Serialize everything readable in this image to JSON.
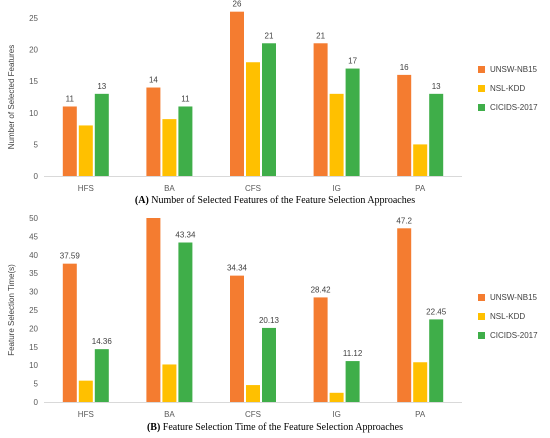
{
  "chart_data": [
    {
      "type": "bar",
      "caption_tag": "(A)",
      "caption_text": "Number of Selected Features of the Feature Selection Approaches",
      "ylabel": "Number of Selected Features",
      "categories": [
        "HFS",
        "BA",
        "CFS",
        "IG",
        "PA"
      ],
      "ylim": [
        0,
        25
      ],
      "yticks": [
        0,
        5,
        10,
        15,
        20,
        25
      ],
      "grid": false,
      "legend_position": "right",
      "series": [
        {
          "name": "UNSW-NB15",
          "color": "#f47c30",
          "values": [
            11,
            14,
            26,
            21,
            16
          ],
          "labeled": true
        },
        {
          "name": "NSL-KDD",
          "color": "#ffc000",
          "values": [
            8,
            9,
            18,
            13,
            5
          ],
          "labeled": false
        },
        {
          "name": "CICIDS-2017",
          "color": "#3fae49",
          "values": [
            13,
            11,
            21,
            17,
            13
          ],
          "labeled": true
        }
      ],
      "labels": {
        "UNSW-NB15": [
          "11",
          "14",
          "26",
          "21",
          "16"
        ],
        "CICIDS-2017": [
          "13",
          "11",
          "21",
          "17",
          "13"
        ]
      }
    },
    {
      "type": "bar",
      "caption_tag": "(B)",
      "caption_text": "Feature Selection Time of the Feature Selection Approaches",
      "ylabel": "Feature Selection Time(s)",
      "categories": [
        "HFS",
        "BA",
        "CFS",
        "IG",
        "PA"
      ],
      "ylim": [
        0,
        50
      ],
      "yticks": [
        0,
        5,
        10,
        15,
        20,
        25,
        30,
        35,
        40,
        45,
        50
      ],
      "grid": false,
      "legend_position": "right",
      "series": [
        {
          "name": "UNSW-NB15",
          "color": "#f47c30",
          "values": [
            37.59,
            50,
            34.34,
            28.42,
            47.2
          ],
          "labeled": true
        },
        {
          "name": "NSL-KDD",
          "color": "#ffc000",
          "values": [
            5.8,
            10.2,
            4.6,
            2.5,
            10.8
          ],
          "labeled": false
        },
        {
          "name": "CICIDS-2017",
          "color": "#3fae49",
          "values": [
            14.36,
            43.34,
            20.13,
            11.12,
            22.45
          ],
          "labeled": true
        }
      ],
      "labels": {
        "UNSW-NB15": [
          "37.59",
          "",
          "34.34",
          "28.42",
          "47.2"
        ],
        "CICIDS-2017": [
          "14.36",
          "43.34",
          "20.13",
          "11.12",
          "22.45"
        ]
      }
    }
  ]
}
